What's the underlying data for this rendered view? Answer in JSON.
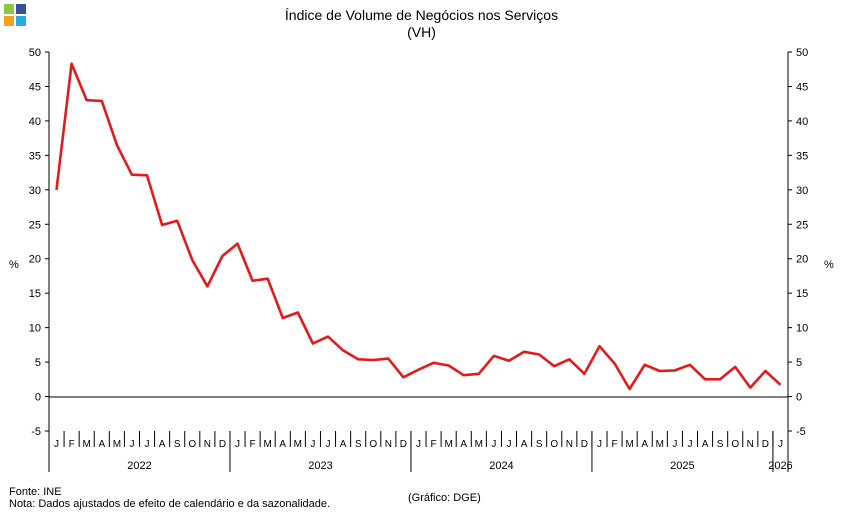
{
  "colors": {
    "line": "#e31a1c",
    "axis": "#000000",
    "logo": [
      "#8dc63f",
      "#3a4f9a",
      "#f4a11d",
      "#29abe2"
    ]
  },
  "logo_icon": "ine-squares-logo-icon",
  "title": "Índice de Volume de Negócios nos Serviços",
  "subtitle": "(VH)",
  "source": "Fonte: INE",
  "note": "Nota: Dados ajustados de efeito de calendário e da sazonalidade.",
  "credit": "(Gráfico: DGE)",
  "chart_data": {
    "type": "line",
    "title": "Índice de Volume de Negócios nos Serviços",
    "subtitle": "(VH)",
    "ylabel": "%",
    "ylabel_right": "%",
    "ylim": [
      -5,
      50
    ],
    "yticks": [
      -5,
      0,
      5,
      10,
      15,
      20,
      25,
      30,
      35,
      40,
      45,
      50
    ],
    "grid": false,
    "legend": "none",
    "month_labels": [
      "J",
      "F",
      "M",
      "A",
      "M",
      "J",
      "J",
      "A",
      "S",
      "O",
      "N",
      "D",
      "J",
      "F",
      "M",
      "A",
      "M",
      "J",
      "J",
      "A",
      "S",
      "O",
      "N",
      "D",
      "J",
      "F",
      "M",
      "A",
      "M",
      "J",
      "J",
      "A",
      "S",
      "O",
      "N",
      "D",
      "J",
      "F",
      "M",
      "A",
      "M",
      "J",
      "J",
      "A",
      "S",
      "O",
      "N",
      "D",
      "J"
    ],
    "years": [
      "2022",
      "2023",
      "2024",
      "2025",
      "2026"
    ],
    "x": [
      "2022-01",
      "2022-02",
      "2022-03",
      "2022-04",
      "2022-05",
      "2022-06",
      "2022-07",
      "2022-08",
      "2022-09",
      "2022-10",
      "2022-11",
      "2022-12",
      "2023-01",
      "2023-02",
      "2023-03",
      "2023-04",
      "2023-05",
      "2023-06",
      "2023-07",
      "2023-08",
      "2023-09",
      "2023-10",
      "2023-11",
      "2023-12",
      "2024-01",
      "2024-02",
      "2024-03",
      "2024-04",
      "2024-05",
      "2024-06",
      "2024-07",
      "2024-08",
      "2024-09",
      "2024-10",
      "2024-11",
      "2024-12",
      "2025-01",
      "2025-02",
      "2025-03",
      "2025-04",
      "2025-05",
      "2025-06",
      "2025-07",
      "2025-08",
      "2025-09",
      "2025-10",
      "2025-11",
      "2025-12",
      "2026-01"
    ],
    "series": [
      {
        "values": [
          30.0,
          48.3,
          43.0,
          42.9,
          36.5,
          32.2,
          32.1,
          24.9,
          25.5,
          19.8,
          16.0,
          20.4,
          22.2,
          16.8,
          17.1,
          11.4,
          12.2,
          7.7,
          8.7,
          6.7,
          5.4,
          5.3,
          5.5,
          2.8,
          3.9,
          4.9,
          4.5,
          3.1,
          3.3,
          5.9,
          5.2,
          6.5,
          6.1,
          4.4,
          5.4,
          3.3,
          7.3,
          4.8,
          1.1,
          4.6,
          3.7,
          3.8,
          4.6,
          2.5,
          2.5,
          4.3,
          1.3,
          3.7,
          1.7
        ]
      }
    ]
  }
}
